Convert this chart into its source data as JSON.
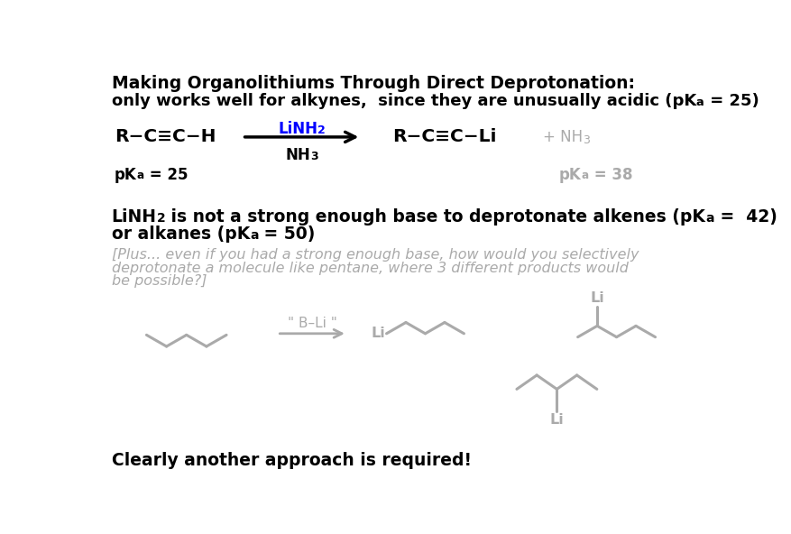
{
  "title1": "Making Organolithiums Through Direct Deprotonation:",
  "linh2_color": "#0000ff",
  "gray_color": "#aaaaaa",
  "black": "#000000",
  "white": "#ffffff",
  "reagent_b_li": "\" B–Li \"",
  "bottom_note": "Clearly another approach is required!"
}
